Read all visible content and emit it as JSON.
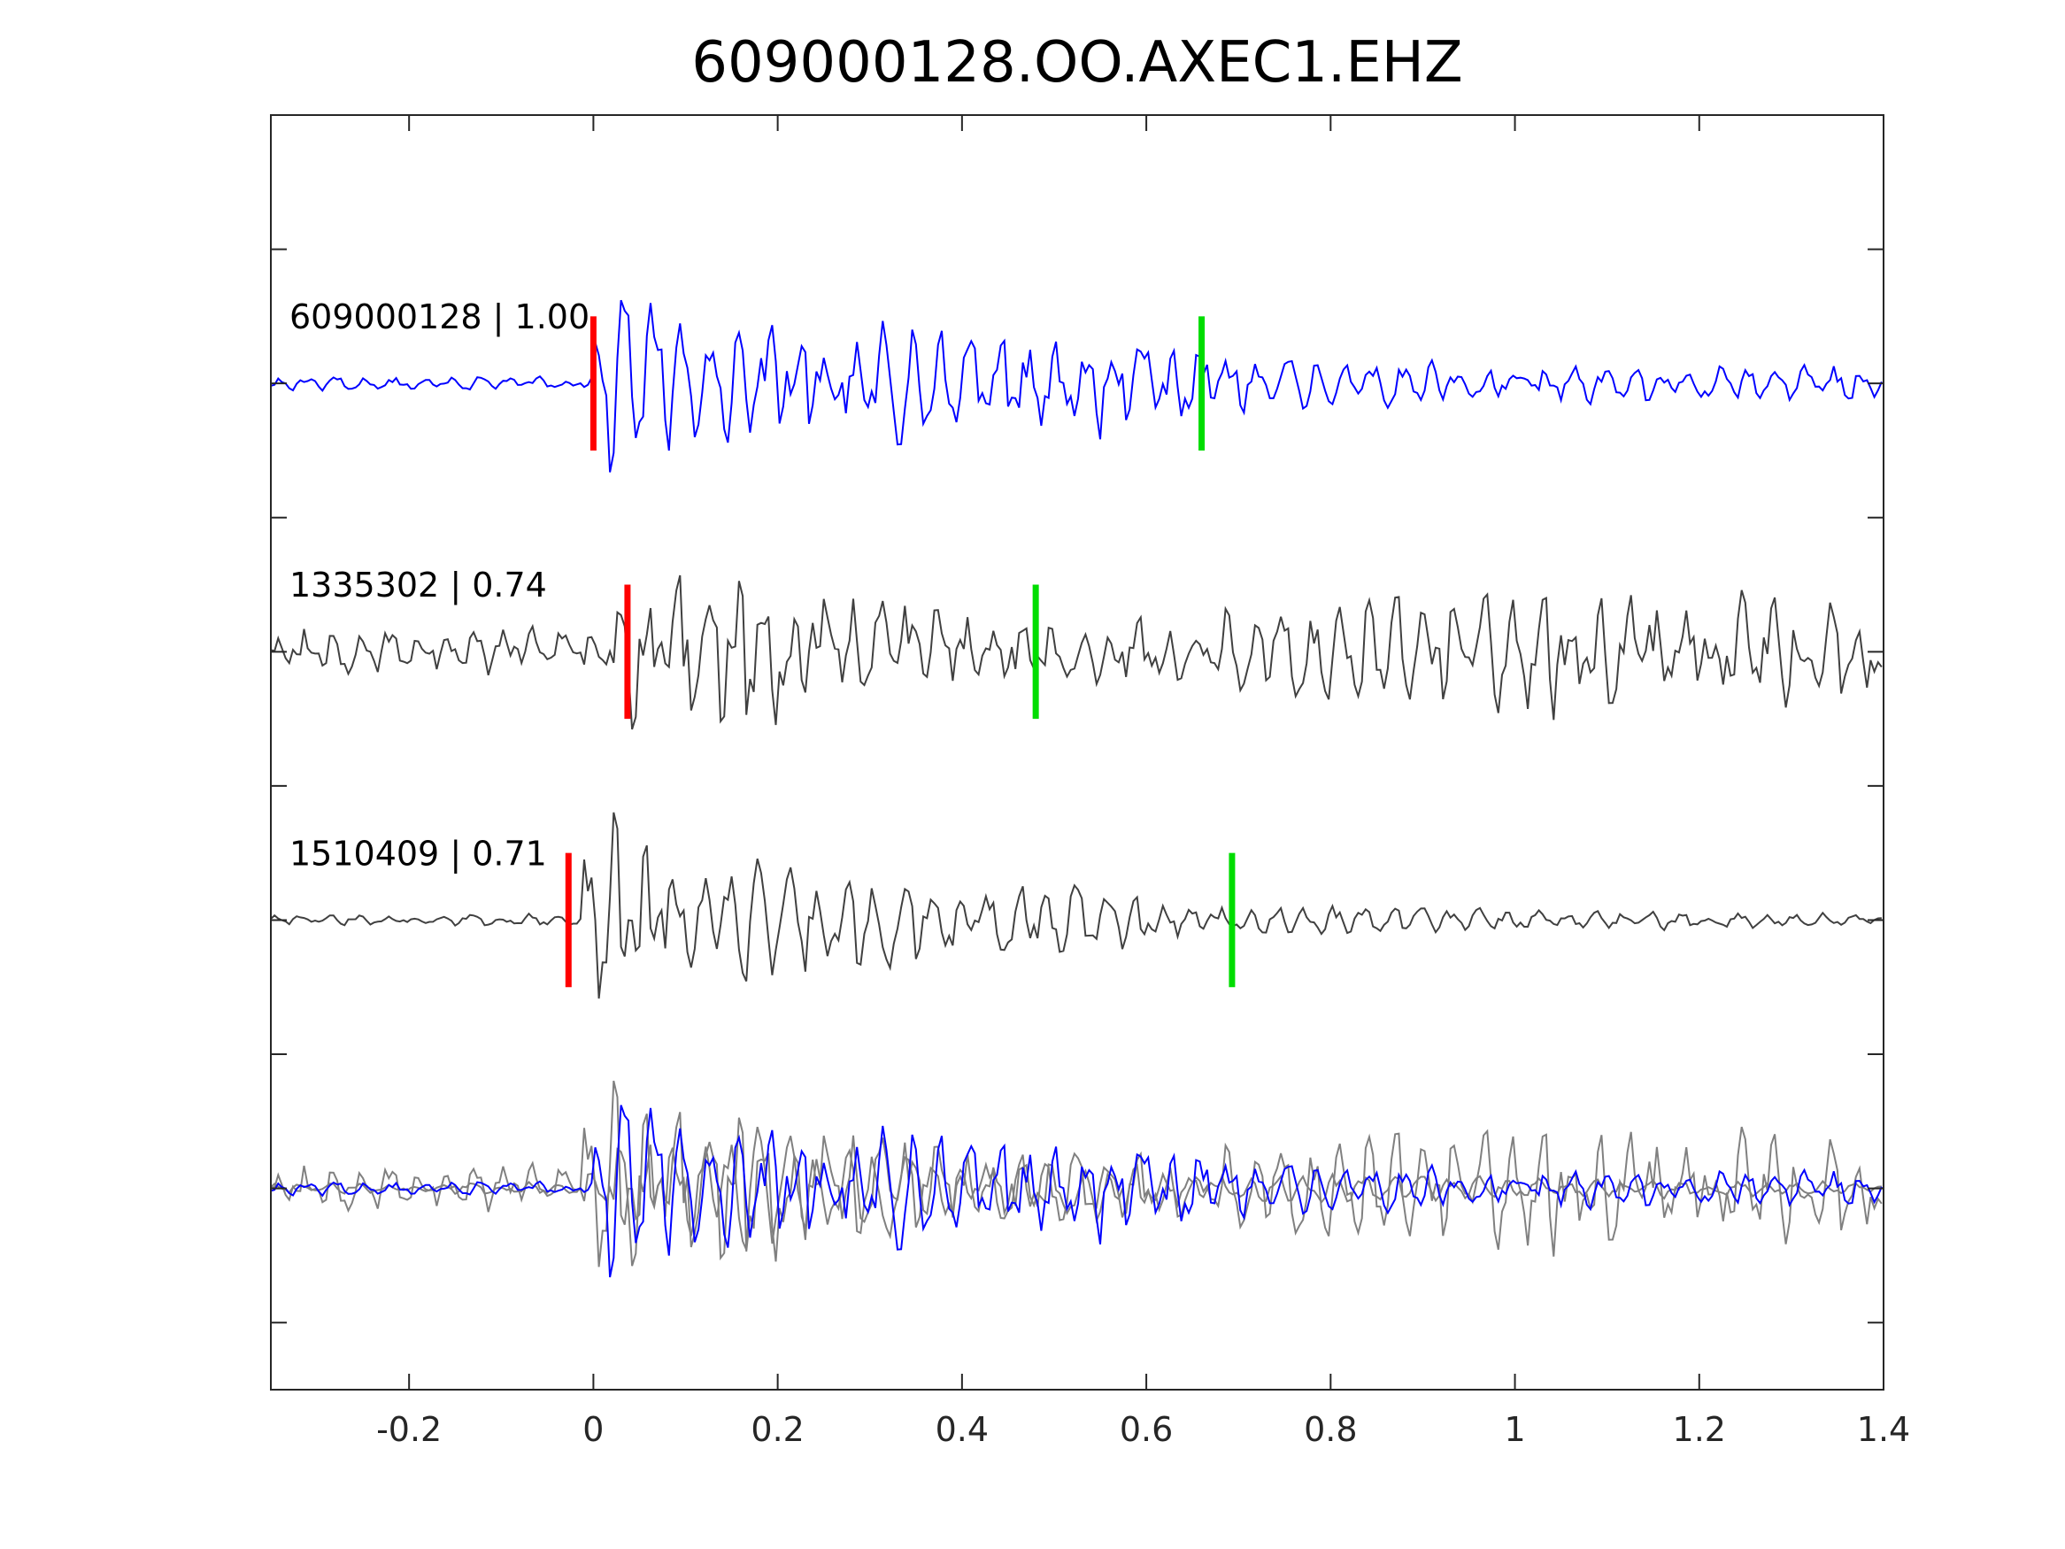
{
  "chart_data": {
    "type": "line",
    "title": "609000128.OO.AXEC1.EHZ",
    "xlabel": "",
    "ylabel": "",
    "xlim": [
      -0.35,
      1.4
    ],
    "ylim": [
      0,
      9.5
    ],
    "grid": false,
    "x_ticks": [
      -0.2,
      0,
      0.2,
      0.4,
      0.6,
      0.8,
      1,
      1.2,
      1.4
    ],
    "x_tick_labels": [
      "-0.2",
      "0",
      "0.2",
      "0.4",
      "0.6",
      "0.8",
      "1",
      "1.2",
      "1.4"
    ],
    "y_ticks": [
      0.5,
      1.5,
      2.5,
      3.5,
      4.5,
      5.5,
      6.5,
      7.5,
      8.5,
      9.5
    ],
    "colors": {
      "template": "#0000ff",
      "match": "#404040",
      "overlay_match": "#808080",
      "p_pick": "#ff0000",
      "s_pick": "#00dd00"
    },
    "series": [
      {
        "label": "609000128 | 1.00",
        "event_id": "609000128",
        "cc": "1.00",
        "baseline": 7.5,
        "color": "template",
        "seed": 1,
        "onset": 0.0,
        "noise_amp": 0.06,
        "coda": [
          [
            0.0,
            0.7
          ],
          [
            0.03,
            1.0
          ],
          [
            0.12,
            0.45
          ],
          [
            0.3,
            0.55
          ],
          [
            0.45,
            0.45
          ],
          [
            0.7,
            0.35
          ],
          [
            0.8,
            0.18
          ],
          [
            1.4,
            0.15
          ]
        ],
        "p_pick": 0.0,
        "s_pick": 0.66
      },
      {
        "label": "1335302 | 0.74",
        "event_id": "1335302",
        "cc": "0.74",
        "baseline": 5.5,
        "color": "match",
        "seed": 2,
        "onset": 0.02,
        "noise_amp": 0.22,
        "coda": [
          [
            0.0,
            0.6
          ],
          [
            0.08,
            1.0
          ],
          [
            0.2,
            0.6
          ],
          [
            0.4,
            0.35
          ],
          [
            0.55,
            0.3
          ],
          [
            0.8,
            0.45
          ],
          [
            1.0,
            0.5
          ],
          [
            1.4,
            0.45
          ]
        ],
        "p_pick": 0.037,
        "s_pick": 0.48
      },
      {
        "label": "1510409 | 0.71",
        "event_id": "1510409",
        "cc": "0.71",
        "baseline": 3.5,
        "color": "match",
        "seed": 3,
        "onset": -0.01,
        "noise_amp": 0.05,
        "coda": [
          [
            0.0,
            0.7
          ],
          [
            0.02,
            1.0
          ],
          [
            0.1,
            0.55
          ],
          [
            0.35,
            0.4
          ],
          [
            0.6,
            0.25
          ],
          [
            0.7,
            0.12
          ],
          [
            1.4,
            0.06
          ]
        ],
        "p_pick": -0.027,
        "s_pick": 0.693
      }
    ],
    "overlay": {
      "baseline": 1.5,
      "description_series": "all traces overlaid"
    }
  }
}
